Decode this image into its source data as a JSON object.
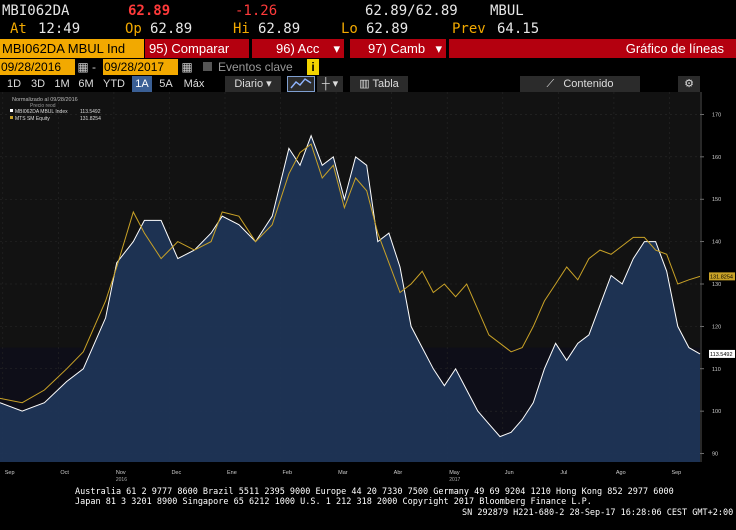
{
  "quote": {
    "ticker": "MBI062DA",
    "last": "62.89",
    "change": "-1.26",
    "bid_ask": "62.89/62.89",
    "exchange": "MBUL",
    "at_label": "At",
    "at_value": "12:49",
    "op_label": "Op",
    "op_value": "62.89",
    "hi_label": "Hi",
    "hi_value": "62.89",
    "lo_label": "Lo",
    "lo_value": "62.89",
    "prev_label": "Prev",
    "prev_value": "64.15"
  },
  "menu": {
    "security": "MBI062DA MBUL Ind",
    "compare": "95) Comparar",
    "actions": "96) Acc",
    "change": "97) Camb",
    "title": "Gráfico de líneas"
  },
  "range": {
    "start": "09/28/2016",
    "end": "09/28/2017",
    "events": "Eventos clave"
  },
  "toolbar": {
    "periods": [
      "1D",
      "3D",
      "1M",
      "6M",
      "YTD",
      "1A",
      "5A",
      "Máx"
    ],
    "selected": "1A",
    "frequency": "Diario",
    "table": "Tabla",
    "content": "Contenido"
  },
  "legend": {
    "header": "Normalizado al 09/28/2016",
    "sub": "Precio reod",
    "series": [
      {
        "name": "MBI062DA MBUL Index",
        "value": "113.5492",
        "color": "#ffffff"
      },
      {
        "name": "MTS SM Equity",
        "value": "131.8254",
        "color": "#c9a227"
      }
    ]
  },
  "footer": {
    "line1": "Australia 61 2 9777 8600 Brazil 5511 2395 9000 Europe 44 20 7330 7500 Germany 49 69 9204 1210 Hong Kong 852 2977 6000",
    "line2": "Japan 81 3 3201 8900        Singapore 65 6212 1000        U.S. 1 212 318 2000        Copyright 2017 Bloomberg Finance L.P.",
    "line3": "SN 292879 H221-680-2 28-Sep-17 16:28:06 CEST GMT+2:00"
  },
  "chart_data": {
    "type": "area",
    "title": "",
    "xlabel": "",
    "ylabel": "",
    "ylim": [
      88,
      172
    ],
    "yticks": [
      90,
      100,
      110,
      120,
      130,
      140,
      150,
      160,
      170
    ],
    "x_ticks": [
      "Sep",
      "Oct",
      "Nov",
      "Dec",
      "Ene",
      "Feb",
      "Mar",
      "Abr",
      "May",
      "Jun",
      "Jul",
      "Ago",
      "Sep"
    ],
    "x_ticks_years": {
      "Nov": "2016",
      "May": "2017"
    },
    "x_range": [
      0,
      12.6
    ],
    "last_value_labels": [
      "131.8254",
      "113.5492"
    ],
    "series": [
      {
        "name": "MBI062DA MBUL Index",
        "color": "#ffffff",
        "fill": "#1f3556",
        "points": [
          [
            0,
            102
          ],
          [
            0.4,
            100
          ],
          [
            0.8,
            102
          ],
          [
            1.2,
            107
          ],
          [
            1.5,
            110
          ],
          [
            1.9,
            122
          ],
          [
            2.1,
            135
          ],
          [
            2.4,
            140
          ],
          [
            2.6,
            145
          ],
          [
            2.9,
            145
          ],
          [
            3.2,
            136
          ],
          [
            3.5,
            138
          ],
          [
            3.8,
            142
          ],
          [
            4.0,
            146
          ],
          [
            4.3,
            144
          ],
          [
            4.6,
            140
          ],
          [
            4.9,
            146
          ],
          [
            5.2,
            162
          ],
          [
            5.4,
            158
          ],
          [
            5.6,
            165
          ],
          [
            5.8,
            158
          ],
          [
            6.0,
            160
          ],
          [
            6.2,
            150
          ],
          [
            6.4,
            160
          ],
          [
            6.6,
            158
          ],
          [
            6.8,
            140
          ],
          [
            7.0,
            142
          ],
          [
            7.2,
            134
          ],
          [
            7.4,
            120
          ],
          [
            7.6,
            115
          ],
          [
            7.8,
            110
          ],
          [
            8.0,
            106
          ],
          [
            8.2,
            110
          ],
          [
            8.4,
            105
          ],
          [
            8.6,
            100
          ],
          [
            8.8,
            97
          ],
          [
            9.0,
            94
          ],
          [
            9.2,
            95
          ],
          [
            9.4,
            98
          ],
          [
            9.6,
            102
          ],
          [
            9.8,
            110
          ],
          [
            10.0,
            116
          ],
          [
            10.2,
            112
          ],
          [
            10.4,
            116
          ],
          [
            10.6,
            118
          ],
          [
            10.8,
            125
          ],
          [
            11.0,
            132
          ],
          [
            11.2,
            130
          ],
          [
            11.4,
            136
          ],
          [
            11.6,
            140
          ],
          [
            11.8,
            140
          ],
          [
            12.0,
            133
          ],
          [
            12.2,
            120
          ],
          [
            12.4,
            115
          ],
          [
            12.6,
            113.5
          ]
        ]
      },
      {
        "name": "MTS SM Equity",
        "color": "#c9a227",
        "points": [
          [
            0,
            103
          ],
          [
            0.4,
            102
          ],
          [
            0.8,
            105
          ],
          [
            1.2,
            110
          ],
          [
            1.5,
            114
          ],
          [
            1.9,
            126
          ],
          [
            2.1,
            134
          ],
          [
            2.4,
            147
          ],
          [
            2.6,
            142
          ],
          [
            2.9,
            136
          ],
          [
            3.2,
            140
          ],
          [
            3.5,
            138
          ],
          [
            3.8,
            140
          ],
          [
            4.0,
            147
          ],
          [
            4.3,
            146
          ],
          [
            4.6,
            140
          ],
          [
            4.9,
            144
          ],
          [
            5.2,
            156
          ],
          [
            5.4,
            161
          ],
          [
            5.6,
            163
          ],
          [
            5.8,
            155
          ],
          [
            6.0,
            158
          ],
          [
            6.2,
            148
          ],
          [
            6.4,
            155
          ],
          [
            6.6,
            152
          ],
          [
            6.8,
            142
          ],
          [
            7.0,
            135
          ],
          [
            7.2,
            128
          ],
          [
            7.4,
            130
          ],
          [
            7.6,
            133
          ],
          [
            7.8,
            128
          ],
          [
            8.0,
            130
          ],
          [
            8.2,
            127
          ],
          [
            8.4,
            130
          ],
          [
            8.6,
            124
          ],
          [
            8.8,
            118
          ],
          [
            9.0,
            116
          ],
          [
            9.2,
            114
          ],
          [
            9.4,
            115
          ],
          [
            9.6,
            120
          ],
          [
            9.8,
            126
          ],
          [
            10.0,
            130
          ],
          [
            10.2,
            134
          ],
          [
            10.4,
            131
          ],
          [
            10.6,
            136
          ],
          [
            10.8,
            138
          ],
          [
            11.0,
            137
          ],
          [
            11.2,
            139
          ],
          [
            11.4,
            141
          ],
          [
            11.6,
            141
          ],
          [
            11.8,
            138
          ],
          [
            12.0,
            137
          ],
          [
            12.2,
            130
          ],
          [
            12.4,
            131
          ],
          [
            12.6,
            131.8
          ]
        ]
      }
    ]
  }
}
